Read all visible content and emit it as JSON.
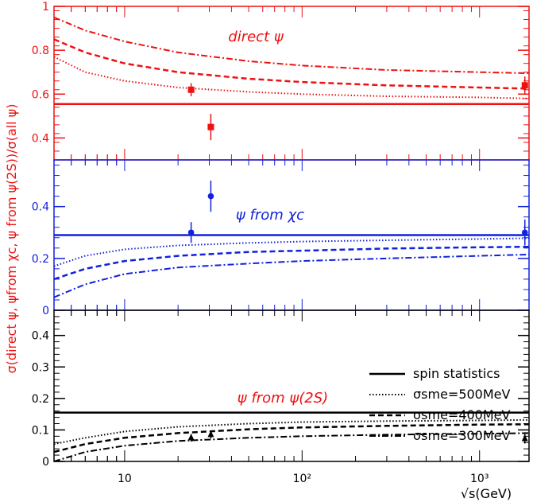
{
  "chart_data": {
    "type": "line",
    "title": "",
    "xlabel": "√s(GeV)",
    "ylabel": "σ(direct ψ, ψfrom χc, ψ from ψ(2S))/σ(all ψ)",
    "x_scale": "log",
    "xlim": [
      4.0,
      1900
    ],
    "x_ticks": [
      10,
      100,
      1000
    ],
    "x_tick_labels": [
      "10",
      "10²",
      "10³"
    ],
    "colors": {
      "direct": "#ee1111",
      "chi": "#1122dd",
      "psi2s": "#000000"
    },
    "panels": [
      {
        "name": "direct",
        "label": "direct ψ",
        "ylim": [
          0.3,
          1.0
        ],
        "y_ticks": [
          0.4,
          0.6,
          0.8,
          1.0
        ],
        "y_tick_labels": [
          "0.4",
          "0.6",
          "0.8",
          "1"
        ],
        "series": [
          {
            "style": "solid",
            "x": [
              4.0,
              1900
            ],
            "values": [
              0.555,
              0.555
            ]
          },
          {
            "style": "dotted",
            "x": [
              4.0,
              6,
              10,
              20,
              50,
              100,
              300,
              1000,
              1900
            ],
            "values": [
              0.77,
              0.7,
              0.66,
              0.63,
              0.61,
              0.6,
              0.59,
              0.585,
              0.58
            ]
          },
          {
            "style": "dashed",
            "x": [
              4.0,
              6,
              10,
              20,
              50,
              100,
              300,
              1000,
              1900
            ],
            "values": [
              0.85,
              0.79,
              0.74,
              0.7,
              0.67,
              0.655,
              0.64,
              0.63,
              0.625
            ]
          },
          {
            "style": "dashdot",
            "x": [
              4.0,
              6,
              10,
              20,
              50,
              100,
              300,
              1000,
              1900
            ],
            "values": [
              0.95,
              0.89,
              0.84,
              0.79,
              0.75,
              0.73,
              0.71,
              0.7,
              0.695
            ]
          }
        ],
        "points": [
          {
            "x": 23.7,
            "y": 0.62,
            "err": 0.03,
            "marker": "square"
          },
          {
            "x": 30.6,
            "y": 0.45,
            "err": 0.06,
            "marker": "square"
          },
          {
            "x": 1800,
            "y": 0.64,
            "err": 0.04,
            "marker": "square"
          }
        ]
      },
      {
        "name": "chi",
        "label": "ψ from χc",
        "ylim": [
          0.0,
          0.58
        ],
        "y_ticks": [
          0.0,
          0.2,
          0.4
        ],
        "y_tick_labels": [
          "0",
          "0.2",
          "0.4"
        ],
        "series": [
          {
            "style": "solid",
            "x": [
              4.0,
              1900
            ],
            "values": [
              0.29,
              0.29
            ]
          },
          {
            "style": "dotted",
            "x": [
              4.0,
              6,
              10,
              20,
              50,
              100,
              300,
              1000,
              1900
            ],
            "values": [
              0.17,
              0.21,
              0.235,
              0.25,
              0.26,
              0.265,
              0.27,
              0.275,
              0.278
            ]
          },
          {
            "style": "dashed",
            "x": [
              4.0,
              6,
              10,
              20,
              50,
              100,
              300,
              1000,
              1900
            ],
            "values": [
              0.12,
              0.16,
              0.19,
              0.21,
              0.225,
              0.23,
              0.238,
              0.243,
              0.245
            ]
          },
          {
            "style": "dashdot",
            "x": [
              4.0,
              6,
              10,
              20,
              50,
              100,
              300,
              1000,
              1900
            ],
            "values": [
              0.05,
              0.1,
              0.14,
              0.165,
              0.18,
              0.19,
              0.2,
              0.21,
              0.215
            ]
          }
        ],
        "points": [
          {
            "x": 23.7,
            "y": 0.3,
            "err": 0.04,
            "marker": "circle"
          },
          {
            "x": 30.6,
            "y": 0.44,
            "err": 0.06,
            "marker": "circle"
          },
          {
            "x": 1800,
            "y": 0.3,
            "err": 0.05,
            "marker": "circle"
          }
        ]
      },
      {
        "name": "psi2s",
        "label": "ψ from ψ(2S)",
        "ylim": [
          0.0,
          0.48
        ],
        "y_ticks": [
          0.0,
          0.1,
          0.2,
          0.3,
          0.4
        ],
        "y_tick_labels": [
          "0",
          "0.1",
          "0.2",
          "0.3",
          "0.4"
        ],
        "series": [
          {
            "style": "solid",
            "x": [
              4.0,
              1900
            ],
            "values": [
              0.155,
              0.155
            ]
          },
          {
            "style": "dotted",
            "x": [
              4.0,
              6,
              10,
              20,
              50,
              100,
              300,
              1000,
              1900
            ],
            "values": [
              0.055,
              0.075,
              0.095,
              0.11,
              0.12,
              0.125,
              0.128,
              0.13,
              0.132
            ]
          },
          {
            "style": "dashed",
            "x": [
              4.0,
              6,
              10,
              20,
              50,
              100,
              300,
              1000,
              1900
            ],
            "values": [
              0.03,
              0.055,
              0.075,
              0.09,
              0.102,
              0.108,
              0.113,
              0.117,
              0.118
            ]
          },
          {
            "style": "dashdot",
            "x": [
              4.0,
              6,
              10,
              20,
              50,
              100,
              300,
              1000,
              1900
            ],
            "values": [
              0.0,
              0.03,
              0.05,
              0.065,
              0.075,
              0.08,
              0.085,
              0.088,
              0.09
            ]
          }
        ],
        "points": [
          {
            "x": 23.7,
            "y": 0.075,
            "err": 0.012,
            "marker": "triangle"
          },
          {
            "x": 30.6,
            "y": 0.085,
            "err": 0.012,
            "marker": "triangle"
          },
          {
            "x": 1800,
            "y": 0.072,
            "err": 0.015,
            "marker": "triangle"
          }
        ]
      }
    ],
    "legend": {
      "placement": "right, in bottom panel",
      "entries": [
        {
          "style": "solid",
          "label": "spin statistics"
        },
        {
          "style": "dotted",
          "label": "σsme=500MeV"
        },
        {
          "style": "dashed",
          "label": "σsme=400MeV"
        },
        {
          "style": "dashdot",
          "label": "σsme=300MeV"
        }
      ]
    }
  }
}
